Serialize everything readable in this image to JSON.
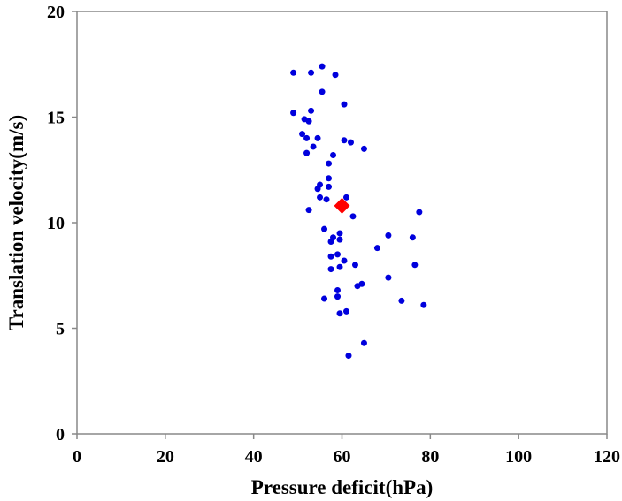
{
  "chart_data": {
    "type": "scatter",
    "title": "",
    "xlabel": "Pressure deficit(hPa)",
    "ylabel": "Translation velocity(m/s)",
    "xlim": [
      0,
      120
    ],
    "ylim": [
      0,
      20
    ],
    "x_ticks": [
      "0",
      "20",
      "40",
      "60",
      "80",
      "100",
      "120"
    ],
    "y_ticks": [
      "0",
      "5",
      "10",
      "15",
      "20"
    ],
    "grid": false,
    "legend": "none",
    "series": [
      {
        "marker": "circle",
        "color": "#0000dd",
        "points": [
          [
            49.0,
            17.1
          ],
          [
            53.0,
            17.1
          ],
          [
            55.5,
            17.4
          ],
          [
            58.5,
            17.0
          ],
          [
            55.5,
            16.2
          ],
          [
            60.5,
            15.6
          ],
          [
            49.0,
            15.2
          ],
          [
            51.5,
            14.9
          ],
          [
            52.5,
            14.8
          ],
          [
            53.0,
            15.3
          ],
          [
            51.0,
            14.2
          ],
          [
            52.0,
            14.0
          ],
          [
            54.5,
            14.0
          ],
          [
            53.5,
            13.6
          ],
          [
            52.0,
            13.3
          ],
          [
            58.0,
            13.2
          ],
          [
            60.5,
            13.9
          ],
          [
            62.0,
            13.8
          ],
          [
            65.0,
            13.5
          ],
          [
            57.0,
            12.8
          ],
          [
            57.0,
            12.1
          ],
          [
            55.0,
            11.8
          ],
          [
            54.5,
            11.6
          ],
          [
            57.0,
            11.7
          ],
          [
            55.0,
            11.2
          ],
          [
            56.5,
            11.1
          ],
          [
            61.0,
            11.2
          ],
          [
            52.5,
            10.6
          ],
          [
            62.5,
            10.3
          ],
          [
            77.5,
            10.5
          ],
          [
            56.0,
            9.7
          ],
          [
            59.5,
            9.5
          ],
          [
            58.0,
            9.3
          ],
          [
            57.5,
            9.1
          ],
          [
            59.5,
            9.2
          ],
          [
            70.5,
            9.4
          ],
          [
            76.0,
            9.3
          ],
          [
            68.0,
            8.8
          ],
          [
            57.5,
            8.4
          ],
          [
            59.0,
            8.5
          ],
          [
            60.5,
            8.2
          ],
          [
            59.5,
            7.9
          ],
          [
            57.5,
            7.8
          ],
          [
            63.0,
            8.0
          ],
          [
            76.5,
            8.0
          ],
          [
            70.5,
            7.4
          ],
          [
            63.5,
            7.0
          ],
          [
            64.5,
            7.1
          ],
          [
            59.0,
            6.8
          ],
          [
            59.0,
            6.5
          ],
          [
            56.0,
            6.4
          ],
          [
            73.5,
            6.3
          ],
          [
            78.5,
            6.1
          ],
          [
            59.5,
            5.7
          ],
          [
            61.0,
            5.8
          ],
          [
            65.0,
            4.3
          ],
          [
            61.5,
            3.7
          ]
        ]
      },
      {
        "marker": "diamond",
        "color": "#ff0000",
        "points": [
          [
            60.0,
            10.8
          ]
        ]
      }
    ]
  }
}
